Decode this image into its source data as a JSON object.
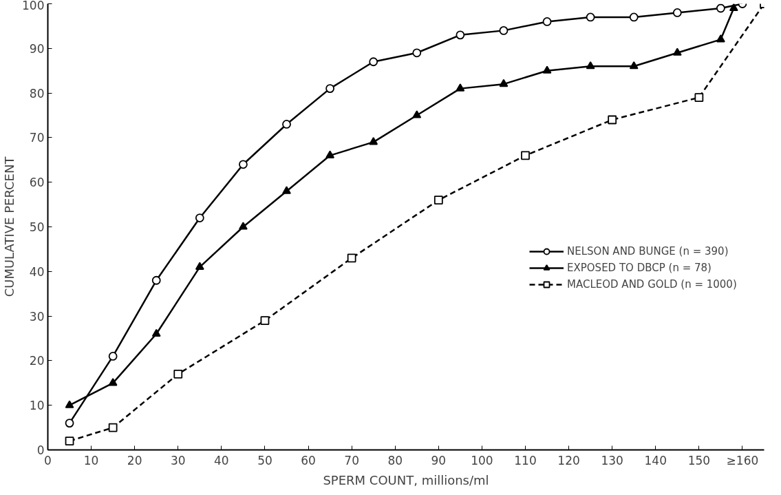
{
  "chart_data": {
    "type": "line",
    "xlabel": "SPERM COUNT, millions/ml",
    "ylabel": "CUMULATIVE PERCENT",
    "xlim": [
      0,
      165
    ],
    "ylim": [
      0,
      100
    ],
    "xticks": [
      0,
      10,
      20,
      30,
      40,
      50,
      60,
      70,
      80,
      90,
      100,
      110,
      120,
      130,
      140,
      150,
      {
        "value": 160,
        "label": "≥160"
      }
    ],
    "yticks": [
      0,
      10,
      20,
      30,
      40,
      50,
      60,
      70,
      80,
      90,
      100
    ],
    "grid": false,
    "legend": "right",
    "series": [
      {
        "name": "NELSON AND BUNGE (n = 390)",
        "color": "#000000",
        "marker": "circle",
        "line_style": "solid",
        "x": [
          5,
          15,
          25,
          35,
          45,
          55,
          65,
          75,
          85,
          95,
          105,
          115,
          125,
          135,
          145,
          155,
          160
        ],
        "values": [
          6,
          21,
          38,
          52,
          64,
          73,
          81,
          87,
          89,
          93,
          94,
          96,
          97,
          97,
          98,
          99,
          100
        ]
      },
      {
        "name": "EXPOSED TO DBCP (n = 78)",
        "color": "#000000",
        "marker": "triangle",
        "line_style": "solid",
        "x": [
          5,
          15,
          25,
          35,
          45,
          55,
          65,
          75,
          85,
          95,
          105,
          115,
          125,
          135,
          145,
          155,
          158
        ],
        "values": [
          10,
          15,
          26,
          41,
          50,
          58,
          66,
          69,
          75,
          81,
          82,
          85,
          86,
          86,
          89,
          92,
          99
        ]
      },
      {
        "name": "MACLEOD AND GOLD (n = 1000)",
        "color": "#000000",
        "marker": "square",
        "line_style": "dashed",
        "x": [
          5,
          15,
          30,
          50,
          70,
          90,
          110,
          130,
          150,
          165
        ],
        "values": [
          2,
          5,
          17,
          29,
          43,
          56,
          66,
          74,
          79,
          100
        ]
      }
    ]
  }
}
